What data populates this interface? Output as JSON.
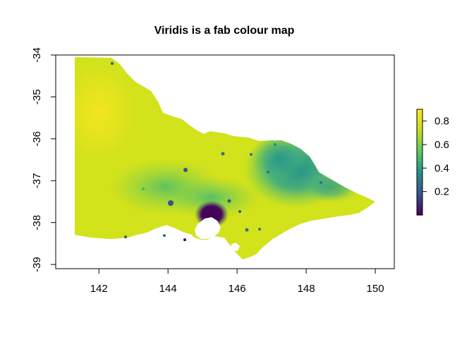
{
  "title": "Viridis is a fab colour map",
  "x_axis": {
    "ticks": [
      "142",
      "144",
      "146",
      "148",
      "150"
    ],
    "values": [
      142,
      144,
      146,
      148,
      150
    ],
    "range": [
      140.75,
      150.55
    ]
  },
  "y_axis": {
    "ticks": [
      "-34",
      "-35",
      "-36",
      "-37",
      "-38",
      "-39"
    ],
    "values": [
      -34,
      -35,
      -36,
      -37,
      -38,
      -39
    ],
    "range": [
      -39.1,
      -34.0
    ]
  },
  "legend": {
    "ticks": [
      "0.2",
      "0.4",
      "0.6",
      "0.8"
    ],
    "values": [
      0.2,
      0.4,
      0.6,
      0.8
    ],
    "range": [
      0.0,
      0.9
    ],
    "placement": "right"
  },
  "colormap": {
    "name": "viridis",
    "stops": [
      "#440154",
      "#3b528b",
      "#21908c",
      "#5dc863",
      "#c2df23",
      "#fde725"
    ]
  },
  "map": {
    "region_fill_predominant": "#d4e21a",
    "water_color": "#ffffff"
  }
}
